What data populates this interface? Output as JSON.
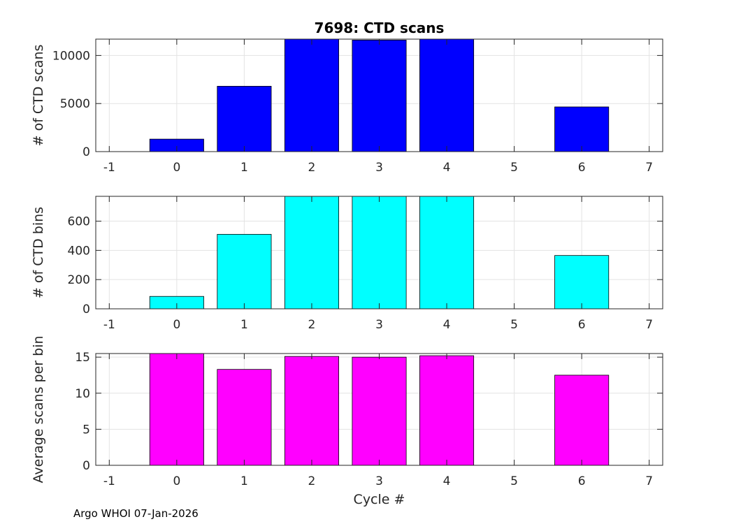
{
  "chart_data": [
    {
      "type": "bar",
      "title": "7698: CTD scans",
      "xlabel": "",
      "ylabel": "# of CTD scans",
      "color": "#0000ff",
      "xlim": [
        -1.2,
        7.2
      ],
      "ylim": [
        0,
        11700
      ],
      "xticks": [
        -1,
        0,
        1,
        2,
        3,
        4,
        5,
        6,
        7
      ],
      "yticks": [
        0,
        5000,
        10000
      ],
      "x": [
        0,
        1,
        2,
        3,
        4,
        6
      ],
      "values": [
        1300,
        6800,
        11700,
        11600,
        11700,
        4650
      ],
      "grid": true
    },
    {
      "type": "bar",
      "title": "",
      "xlabel": "",
      "ylabel": "# of CTD bins",
      "color": "#00ffff",
      "xlim": [
        -1.2,
        7.2
      ],
      "ylim": [
        0,
        770
      ],
      "xticks": [
        -1,
        0,
        1,
        2,
        3,
        4,
        5,
        6,
        7
      ],
      "yticks": [
        0,
        200,
        400,
        600
      ],
      "x": [
        0,
        1,
        2,
        3,
        4,
        6
      ],
      "values": [
        85,
        510,
        770,
        770,
        770,
        365
      ],
      "grid": true
    },
    {
      "type": "bar",
      "title": "",
      "xlabel": "Cycle #",
      "ylabel": "Average scans per bin",
      "color": "#ff00ff",
      "xlim": [
        -1.2,
        7.2
      ],
      "ylim": [
        0,
        15.5
      ],
      "xticks": [
        -1,
        0,
        1,
        2,
        3,
        4,
        5,
        6,
        7
      ],
      "yticks": [
        0,
        5,
        10,
        15
      ],
      "x": [
        0,
        1,
        2,
        3,
        4,
        6
      ],
      "values": [
        15.5,
        13.3,
        15.1,
        15.0,
        15.2,
        12.5
      ],
      "grid": true
    }
  ],
  "footer": "Argo WHOI 07-Jan-2026"
}
